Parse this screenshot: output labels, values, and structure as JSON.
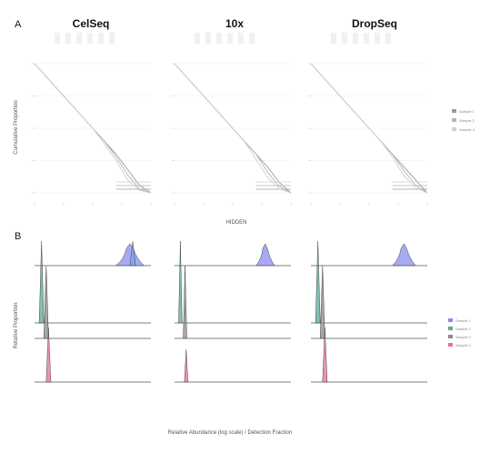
{
  "figure": {
    "panel_a_label": "A",
    "panel_b_label": "B",
    "columns": [
      "CelSeq",
      "10x",
      "DropSeq"
    ],
    "panel_a_xlabel": "HIDDEN",
    "panel_a_ylabel": "Cumulative Proportion",
    "panel_b_ylabel": "Relative Proportion",
    "panel_b_xlabel": "Relative Abundance (log scale) / Detection Fraction",
    "panel_a_legend": [
      "Sample 1",
      "Sample 2",
      "Sample 3"
    ],
    "panel_b_legend": [
      "Sample 1",
      "Sample 2",
      "Sample 3",
      "Sample 4"
    ]
  },
  "chart_data": [
    {
      "type": "line",
      "panel": "A",
      "columns": [
        "CelSeq",
        "10x",
        "DropSeq"
      ],
      "xlabel": "HIDDEN",
      "ylabel": "Cumulative Proportion",
      "grid": true,
      "legend_position": "right",
      "x": [
        0,
        0.1,
        0.2,
        0.3,
        0.4,
        0.5,
        0.6,
        0.7,
        0.8,
        0.9,
        1.0
      ],
      "series_per_column": [
        {
          "column": "CelSeq",
          "series": [
            {
              "values": [
                1.0,
                0.9,
                0.8,
                0.7,
                0.6,
                0.5,
                0.4,
                0.3,
                0.18,
                0.06,
                0.0
              ]
            },
            {
              "values": [
                1.0,
                0.9,
                0.8,
                0.7,
                0.6,
                0.5,
                0.4,
                0.28,
                0.14,
                0.03,
                0.0
              ]
            },
            {
              "values": [
                1.0,
                0.9,
                0.8,
                0.7,
                0.6,
                0.5,
                0.38,
                0.25,
                0.1,
                0.02,
                0.0
              ]
            }
          ]
        },
        {
          "column": "10x",
          "series": [
            {
              "values": [
                1.0,
                0.9,
                0.8,
                0.7,
                0.6,
                0.5,
                0.4,
                0.3,
                0.2,
                0.08,
                0.0
              ]
            },
            {
              "values": [
                1.0,
                0.9,
                0.8,
                0.7,
                0.6,
                0.5,
                0.4,
                0.3,
                0.16,
                0.05,
                0.0
              ]
            },
            {
              "values": [
                1.0,
                0.9,
                0.8,
                0.7,
                0.6,
                0.5,
                0.4,
                0.26,
                0.12,
                0.03,
                0.0
              ]
            }
          ]
        },
        {
          "column": "DropSeq",
          "series": [
            {
              "values": [
                1.0,
                0.9,
                0.8,
                0.7,
                0.6,
                0.5,
                0.4,
                0.3,
                0.2,
                0.1,
                0.0
              ]
            },
            {
              "values": [
                1.0,
                0.9,
                0.8,
                0.7,
                0.6,
                0.5,
                0.4,
                0.3,
                0.17,
                0.06,
                0.0
              ]
            },
            {
              "values": [
                1.0,
                0.9,
                0.8,
                0.7,
                0.6,
                0.5,
                0.4,
                0.28,
                0.13,
                0.04,
                0.0
              ]
            }
          ]
        }
      ],
      "colors": [
        "#9a9a9a",
        "#b4b4b4",
        "#cfcfcf"
      ]
    },
    {
      "type": "area",
      "panel": "B",
      "columns": [
        "CelSeq",
        "10x",
        "DropSeq"
      ],
      "ylabel": "Relative Proportion",
      "xlabel": "Relative Abundance (log scale) / Detection Fraction",
      "legend_position": "right",
      "rows": [
        {
          "color": "#8a8cf0",
          "peaks": [
            {
              "column": "CelSeq",
              "center": 0.82,
              "width": 0.12,
              "height": 1.0,
              "extra_color": "#6fa8e8"
            },
            {
              "column": "10x",
              "center": 0.78,
              "width": 0.08,
              "height": 1.0
            },
            {
              "column": "DropSeq",
              "center": 0.8,
              "width": 0.1,
              "height": 1.0
            }
          ]
        },
        {
          "color": "#5aa89a",
          "peaks": [
            {
              "column": "CelSeq",
              "center": 0.06,
              "width": 0.04,
              "height": 1.0
            },
            {
              "column": "10x",
              "center": 0.05,
              "width": 0.03,
              "height": 1.0
            },
            {
              "column": "DropSeq",
              "center": 0.06,
              "width": 0.04,
              "height": 1.0
            }
          ]
        },
        {
          "color": "#8a8a8a",
          "peaks": [
            {
              "column": "CelSeq",
              "center": 0.1,
              "width": 0.04,
              "height": 1.0
            },
            {
              "column": "10x",
              "center": 0.09,
              "width": 0.03,
              "height": 1.0
            },
            {
              "column": "DropSeq",
              "center": 0.1,
              "width": 0.04,
              "height": 1.0
            }
          ]
        },
        {
          "color": "#e87090",
          "peaks": [
            {
              "column": "CelSeq",
              "center": 0.12,
              "width": 0.04,
              "height": 1.0
            },
            {
              "column": "10x",
              "center": 0.1,
              "width": 0.03,
              "height": 0.6
            },
            {
              "column": "DropSeq",
              "center": 0.12,
              "width": 0.04,
              "height": 1.0
            }
          ]
        }
      ]
    }
  ]
}
